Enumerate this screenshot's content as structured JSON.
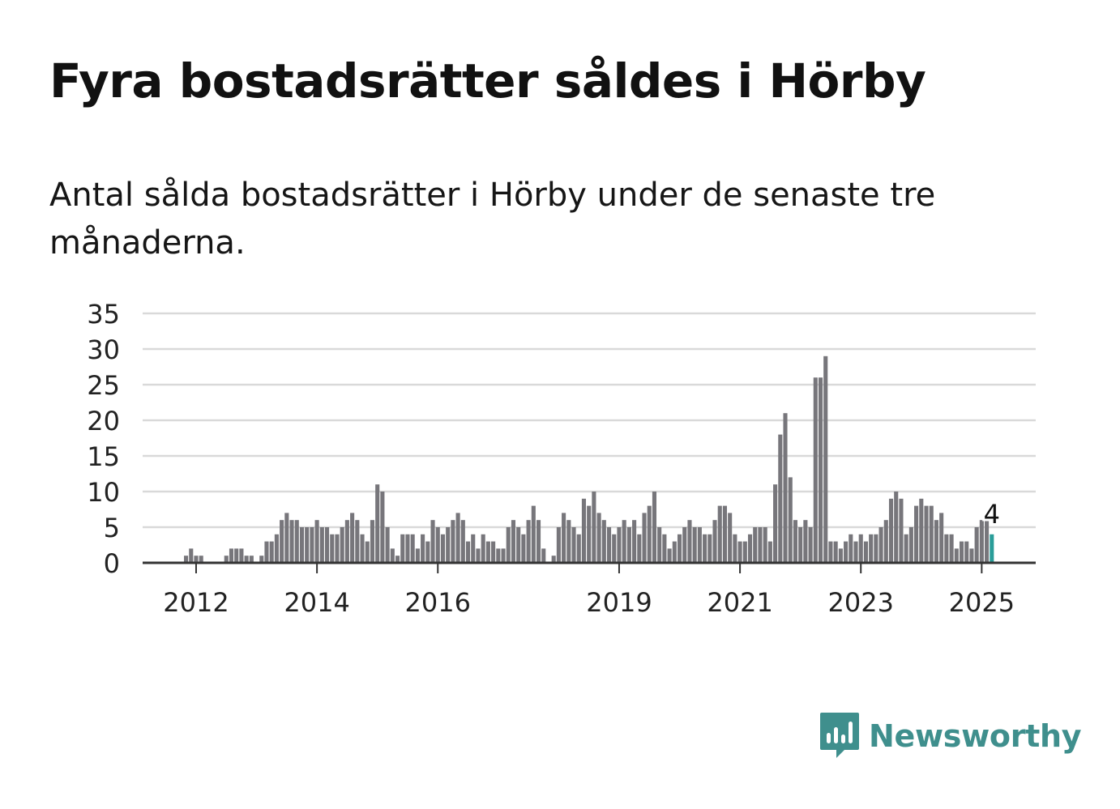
{
  "header": {
    "title": "Fyra bostadsrätter såldes i Hörby",
    "subtitle": "Antal sålda bostadsrätter i Hörby under de senaste tre månaderna."
  },
  "brand": {
    "name": "Newsworthy",
    "icon": "newsworthy-logo-icon",
    "color": "#3f8f8d"
  },
  "chart_data": {
    "type": "bar",
    "title": "",
    "xlabel": "",
    "ylabel": "",
    "ylim": [
      0,
      35
    ],
    "yticks": [
      0,
      5,
      10,
      15,
      20,
      25,
      30,
      35
    ],
    "xtick_labels": [
      "2012",
      "2014",
      "2016",
      "2019",
      "2021",
      "2023",
      "2025"
    ],
    "grid": true,
    "bar_color": "#77767b",
    "highlight_color": "#2a9d99",
    "start_month": "2011-11",
    "frequency": "monthly",
    "values": [
      1,
      2,
      1,
      1,
      0,
      0,
      0,
      0,
      1,
      2,
      2,
      2,
      1,
      1,
      0,
      1,
      3,
      3,
      4,
      6,
      7,
      6,
      6,
      5,
      5,
      5,
      6,
      5,
      5,
      4,
      4,
      5,
      6,
      7,
      6,
      4,
      3,
      6,
      11,
      10,
      5,
      2,
      1,
      4,
      4,
      4,
      2,
      4,
      3,
      6,
      5,
      4,
      5,
      6,
      7,
      6,
      3,
      4,
      2,
      4,
      3,
      3,
      2,
      2,
      5,
      6,
      5,
      4,
      6,
      8,
      6,
      2,
      0,
      1,
      5,
      7,
      6,
      5,
      4,
      9,
      8,
      10,
      7,
      6,
      5,
      4,
      5,
      6,
      5,
      6,
      4,
      7,
      8,
      10,
      5,
      4,
      2,
      3,
      4,
      5,
      6,
      5,
      5,
      4,
      4,
      6,
      8,
      8,
      7,
      4,
      3,
      3,
      4,
      5,
      5,
      5,
      3,
      11,
      18,
      21,
      12,
      6,
      5,
      6,
      5,
      26,
      26,
      29,
      3,
      3,
      2,
      3,
      4,
      3,
      4,
      3,
      4,
      4,
      5,
      6,
      9,
      10,
      9,
      4,
      5,
      8,
      9,
      8,
      8,
      6,
      7,
      4,
      4,
      2,
      3,
      3,
      2,
      5,
      6,
      6,
      4
    ],
    "highlight": {
      "label": "4",
      "value": 4
    }
  }
}
